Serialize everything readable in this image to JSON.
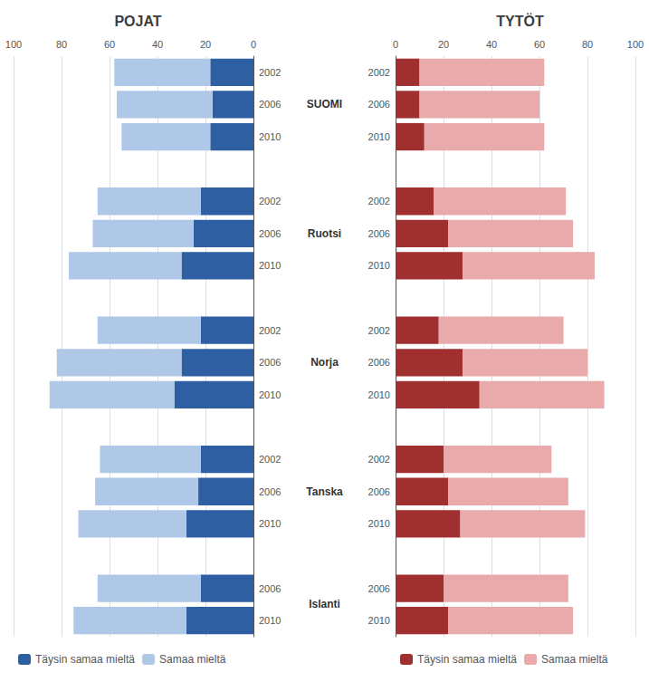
{
  "chart_data": [
    {
      "type": "bar",
      "orientation": "horizontal",
      "stacked": true,
      "title": "POJAT",
      "categories": [
        "2002",
        "2006",
        "2010",
        "2002",
        "2006",
        "2010",
        "2002",
        "2006",
        "2010",
        "2002",
        "2006",
        "2010",
        "2006",
        "2010"
      ],
      "category_groups": [
        "SUOMI",
        "SUOMI",
        "SUOMI",
        "Ruotsi",
        "Ruotsi",
        "Ruotsi",
        "Norja",
        "Norja",
        "Norja",
        "Tanska",
        "Tanska",
        "Tanska",
        "Islanti",
        "Islanti"
      ],
      "series": [
        {
          "name": "Täysin samaa mieltä",
          "color": "#2E5FA3",
          "values": [
            18,
            17,
            18,
            22,
            25,
            30,
            22,
            30,
            33,
            22,
            23,
            28,
            22,
            28
          ]
        },
        {
          "name": "Samaa mieltä",
          "color": "#AFC8E8",
          "values": [
            40,
            40,
            37,
            43,
            42,
            47,
            43,
            52,
            52,
            42,
            43,
            45,
            43,
            47
          ]
        }
      ],
      "xlim": [
        0,
        100
      ],
      "xticks": [
        0,
        20,
        40,
        60,
        80,
        100
      ],
      "grid": true,
      "legend": "lower left"
    },
    {
      "type": "bar",
      "orientation": "horizontal",
      "stacked": true,
      "title": "TYTÖT",
      "categories": [
        "2002",
        "2006",
        "2010",
        "2002",
        "2006",
        "2010",
        "2002",
        "2006",
        "2010",
        "2002",
        "2006",
        "2010",
        "2006",
        "2010"
      ],
      "category_groups": [
        "SUOMI",
        "SUOMI",
        "SUOMI",
        "Ruotsi",
        "Ruotsi",
        "Ruotsi",
        "Norja",
        "Norja",
        "Norja",
        "Tanska",
        "Tanska",
        "Tanska",
        "Islanti",
        "Islanti"
      ],
      "series": [
        {
          "name": "Täysin samaa mieltä",
          "color": "#A03030",
          "values": [
            10,
            10,
            12,
            16,
            22,
            28,
            18,
            28,
            35,
            20,
            22,
            27,
            20,
            22
          ]
        },
        {
          "name": "Samaa mieltä",
          "color": "#E8AAAA",
          "values": [
            52,
            50,
            50,
            55,
            52,
            55,
            52,
            52,
            52,
            45,
            50,
            52,
            52,
            52
          ]
        }
      ],
      "xlim": [
        0,
        100
      ],
      "xticks": [
        0,
        20,
        40,
        60,
        80,
        100
      ],
      "grid": true,
      "legend": "lower left"
    }
  ]
}
